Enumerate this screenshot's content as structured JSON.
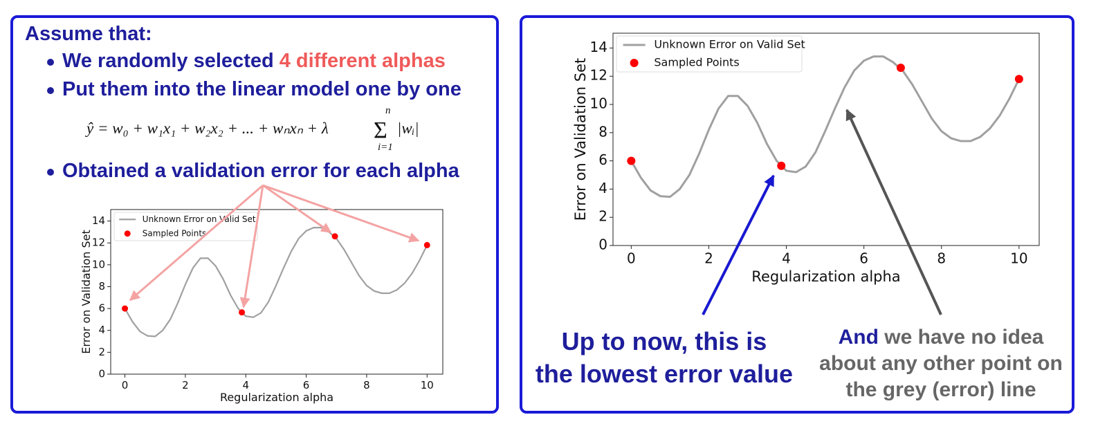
{
  "left": {
    "heading": "Assume that:",
    "bullets": [
      [
        "We randomly selected ",
        "4 different alphas"
      ],
      [
        "Put them into the linear model one by one"
      ],
      [
        "Obtained a validation error for each alpha"
      ]
    ],
    "formula": {
      "body": "ŷ = w₀ + w₁x₁ + w₂x₂ + ... + wₙxₙ + λ",
      "sum": "Σ",
      "upper": "n",
      "lower": "i=1",
      "tail": "|wᵢ|"
    }
  },
  "right": {
    "note_left": [
      "Up to now, this is",
      "the lowest error value"
    ],
    "note_right": {
      "lead": "And",
      "lines": [
        "we have no idea",
        "about any other point on",
        "the grey (error) line"
      ]
    }
  },
  "chart_data": [
    {
      "type": "line",
      "xlabel": "Regularization alpha",
      "ylabel": "Error on Validation Set",
      "xlim": [
        -0.47,
        10.52
      ],
      "ylim": [
        0,
        15.05
      ],
      "xticks": [
        0,
        2,
        4,
        6,
        8,
        10
      ],
      "yticks": [
        0,
        2,
        4,
        6,
        8,
        10,
        12,
        14
      ],
      "legend": "upper left",
      "series": [
        {
          "name": "Unknown Error on Valid Set",
          "color": "#a0a0a0",
          "type": "line",
          "x": [
            0,
            0.25,
            0.5,
            0.75,
            1,
            1.25,
            1.5,
            1.75,
            2,
            2.25,
            2.5,
            2.75,
            3,
            3.25,
            3.5,
            3.75,
            4,
            4.25,
            4.5,
            4.75,
            5,
            5.25,
            5.5,
            5.75,
            6,
            6.25,
            6.5,
            6.75,
            7,
            7.25,
            7.5,
            7.75,
            8,
            8.25,
            8.5,
            8.75,
            9,
            9.25,
            9.5,
            9.75,
            10
          ],
          "values": [
            6.0,
            4.8,
            3.9,
            3.5,
            3.45,
            4.0,
            5.0,
            6.5,
            8.2,
            9.7,
            10.6,
            10.6,
            9.9,
            8.7,
            7.2,
            6.0,
            5.3,
            5.2,
            5.6,
            6.6,
            8.1,
            9.7,
            11.2,
            12.4,
            13.1,
            13.4,
            13.4,
            13.0,
            12.4,
            11.4,
            10.2,
            9.0,
            8.1,
            7.6,
            7.4,
            7.4,
            7.7,
            8.3,
            9.2,
            10.4,
            11.8
          ]
        },
        {
          "name": "Sampled Points",
          "color": "#ff0000",
          "type": "scatter",
          "x": [
            0,
            3.87,
            6.95,
            10
          ],
          "values": [
            6.0,
            5.65,
            12.6,
            11.8
          ]
        }
      ]
    },
    {
      "type": "line",
      "xlabel": "Regularization alpha",
      "ylabel": "Error on Validation Set",
      "xlim": [
        -0.47,
        10.52
      ],
      "ylim": [
        0,
        15.05
      ],
      "xticks": [
        0,
        2,
        4,
        6,
        8,
        10
      ],
      "yticks": [
        0,
        2,
        4,
        6,
        8,
        10,
        12,
        14
      ],
      "legend": "upper left",
      "series": [
        {
          "name": "Unknown Error on Valid Set",
          "color": "#a0a0a0",
          "type": "line",
          "x": [
            0,
            0.25,
            0.5,
            0.75,
            1,
            1.25,
            1.5,
            1.75,
            2,
            2.25,
            2.5,
            2.75,
            3,
            3.25,
            3.5,
            3.75,
            4,
            4.25,
            4.5,
            4.75,
            5,
            5.25,
            5.5,
            5.75,
            6,
            6.25,
            6.5,
            6.75,
            7,
            7.25,
            7.5,
            7.75,
            8,
            8.25,
            8.5,
            8.75,
            9,
            9.25,
            9.5,
            9.75,
            10
          ],
          "values": [
            6.0,
            4.8,
            3.9,
            3.5,
            3.45,
            4.0,
            5.0,
            6.5,
            8.2,
            9.7,
            10.6,
            10.6,
            9.9,
            8.7,
            7.2,
            6.0,
            5.3,
            5.2,
            5.6,
            6.6,
            8.1,
            9.7,
            11.2,
            12.4,
            13.1,
            13.4,
            13.4,
            13.0,
            12.4,
            11.4,
            10.2,
            9.0,
            8.1,
            7.6,
            7.4,
            7.4,
            7.7,
            8.3,
            9.2,
            10.4,
            11.8
          ]
        },
        {
          "name": "Sampled Points",
          "color": "#ff0000",
          "type": "scatter",
          "x": [
            0,
            3.87,
            6.95,
            10
          ],
          "values": [
            6.0,
            5.65,
            12.6,
            11.8
          ]
        }
      ]
    }
  ]
}
